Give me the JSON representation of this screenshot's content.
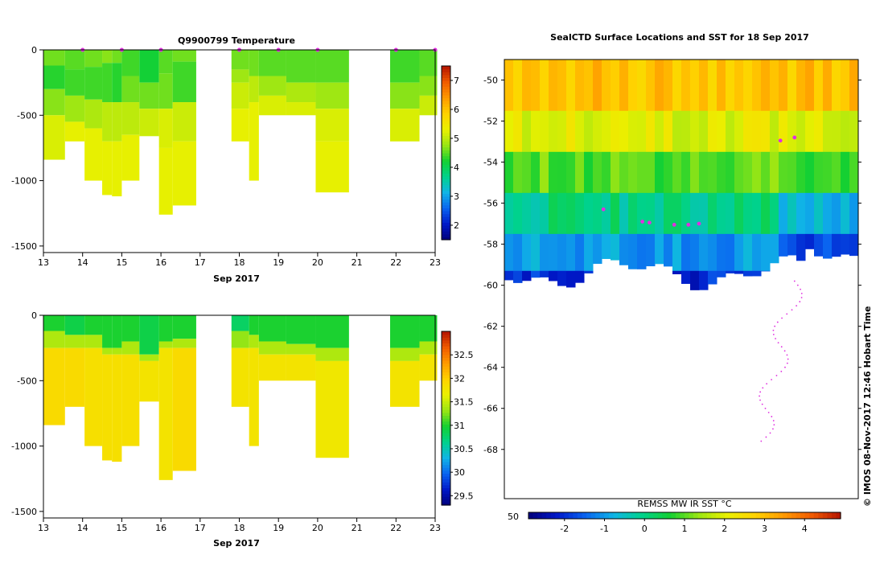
{
  "colors": {
    "cmap_temp": [
      "#00007a",
      "#0018c8",
      "#0a64f0",
      "#10b4e6",
      "#00d28c",
      "#14d032",
      "#9be614",
      "#eaf000",
      "#ffd200",
      "#ff9a00",
      "#f05a00",
      "#b41400"
    ],
    "cmap_sst": [
      "#00007a",
      "#0018c8",
      "#0a64f0",
      "#10b4e6",
      "#00d28c",
      "#14d032",
      "#9be614",
      "#eaf000",
      "#ffd200",
      "#ff9a00",
      "#f05a00",
      "#b41400"
    ],
    "marker": "#e030e0"
  },
  "chart_data": [
    {
      "type": "heatmap",
      "title": "Q9900799  Temperature",
      "xlabel": "Sep 2017",
      "ylabel": "",
      "x_ticks": [
        "13",
        "14",
        "15",
        "16",
        "17",
        "18",
        "19",
        "20",
        "21",
        "22",
        "23"
      ],
      "y_ticks": [
        "0",
        "-500",
        "-1000",
        "-1500"
      ],
      "xlim": [
        13,
        23
      ],
      "ylim": [
        -1550,
        0
      ],
      "colorbar_ticks": [
        "2",
        "3",
        "4",
        "5",
        "6",
        "7"
      ],
      "colorbar_range": [
        1.5,
        7.5
      ],
      "profiles": [
        {
          "x0": 13.0,
          "x1": 13.55,
          "depth": -840,
          "layers": [
            [
              0,
              -120,
              4.6
            ],
            [
              -120,
              -300,
              4.3
            ],
            [
              -300,
              -500,
              4.7
            ],
            [
              -500,
              -840,
              5.2
            ]
          ]
        },
        {
          "x0": 13.55,
          "x1": 14.05,
          "depth": -700,
          "layers": [
            [
              0,
              -150,
              4.5
            ],
            [
              -150,
              -350,
              4.4
            ],
            [
              -350,
              -550,
              4.8
            ],
            [
              -550,
              -700,
              5.3
            ]
          ]
        },
        {
          "x0": 14.05,
          "x1": 14.5,
          "depth": -1000,
          "layers": [
            [
              0,
              -130,
              4.6
            ],
            [
              -130,
              -380,
              4.4
            ],
            [
              -380,
              -600,
              4.9
            ],
            [
              -600,
              -1000,
              5.3
            ]
          ]
        },
        {
          "x0": 14.5,
          "x1": 14.75,
          "depth": -1110,
          "layers": [
            [
              0,
              -100,
              4.7
            ],
            [
              -100,
              -400,
              4.4
            ],
            [
              -400,
              -700,
              5.0
            ],
            [
              -700,
              -1110,
              5.3
            ]
          ]
        },
        {
          "x0": 14.75,
          "x1": 15.0,
          "depth": -1120,
          "layers": [
            [
              0,
              -100,
              4.6
            ],
            [
              -100,
              -400,
              4.3
            ],
            [
              -400,
              -700,
              5.0
            ],
            [
              -700,
              -1120,
              5.3
            ]
          ]
        },
        {
          "x0": 15.0,
          "x1": 15.45,
          "depth": -1000,
          "layers": [
            [
              0,
              -200,
              4.4
            ],
            [
              -200,
              -400,
              4.6
            ],
            [
              -400,
              -650,
              5.0
            ],
            [
              -650,
              -1000,
              5.3
            ]
          ]
        },
        {
          "x0": 15.45,
          "x1": 15.95,
          "depth": -660,
          "layers": [
            [
              0,
              -250,
              4.2
            ],
            [
              -250,
              -450,
              4.6
            ],
            [
              -450,
              -660,
              5.1
            ]
          ]
        },
        {
          "x0": 15.95,
          "x1": 16.3,
          "depth": -1260,
          "layers": [
            [
              0,
              -180,
              4.5
            ],
            [
              -180,
              -450,
              4.6
            ],
            [
              -450,
              -750,
              5.2
            ],
            [
              -750,
              -1260,
              5.3
            ]
          ]
        },
        {
          "x0": 16.3,
          "x1": 16.9,
          "depth": -1190,
          "layers": [
            [
              0,
              -90,
              4.6
            ],
            [
              -90,
              -400,
              4.4
            ],
            [
              -400,
              -700,
              5.1
            ],
            [
              -700,
              -1190,
              5.3
            ]
          ]
        },
        {
          "x0": 17.8,
          "x1": 18.25,
          "depth": -700,
          "layers": [
            [
              0,
              -150,
              4.6
            ],
            [
              -150,
              -250,
              4.8
            ],
            [
              -250,
              -450,
              5.1
            ],
            [
              -450,
              -700,
              5.3
            ]
          ]
        },
        {
          "x0": 18.25,
          "x1": 18.5,
          "depth": -1000,
          "layers": [
            [
              0,
              -200,
              4.6
            ],
            [
              -200,
              -400,
              5.0
            ],
            [
              -400,
              -1000,
              5.3
            ]
          ]
        },
        {
          "x0": 18.5,
          "x1": 19.2,
          "depth": -500,
          "layers": [
            [
              0,
              -200,
              4.5
            ],
            [
              -200,
              -350,
              4.8
            ],
            [
              -350,
              -500,
              5.2
            ]
          ]
        },
        {
          "x0": 19.2,
          "x1": 19.95,
          "depth": -500,
          "layers": [
            [
              0,
              -250,
              4.5
            ],
            [
              -250,
              -400,
              4.9
            ],
            [
              -400,
              -500,
              5.2
            ]
          ]
        },
        {
          "x0": 19.95,
          "x1": 20.8,
          "depth": -1090,
          "layers": [
            [
              0,
              -250,
              4.5
            ],
            [
              -250,
              -450,
              4.8
            ],
            [
              -450,
              -700,
              5.2
            ],
            [
              -700,
              -1090,
              5.3
            ]
          ]
        },
        {
          "x0": 21.85,
          "x1": 22.6,
          "depth": -700,
          "layers": [
            [
              0,
              -250,
              4.4
            ],
            [
              -250,
              -450,
              4.7
            ],
            [
              -450,
              -700,
              5.2
            ]
          ]
        },
        {
          "x0": 22.6,
          "x1": 23.05,
          "depth": -500,
          "layers": [
            [
              0,
              -200,
              4.5
            ],
            [
              -200,
              -350,
              4.7
            ],
            [
              -350,
              -500,
              5.1
            ]
          ]
        }
      ],
      "surface_markers": [
        14.0,
        15.0,
        16.0,
        18.0,
        19.0,
        20.0,
        22.0,
        23.0
      ]
    },
    {
      "type": "heatmap",
      "title": "",
      "xlabel": "Sep 2017",
      "ylabel": "",
      "x_ticks": [
        "13",
        "14",
        "15",
        "16",
        "17",
        "18",
        "19",
        "20",
        "21",
        "22",
        "23"
      ],
      "y_ticks": [
        "0",
        "-500",
        "-1000",
        "-1500"
      ],
      "xlim": [
        13,
        23
      ],
      "ylim": [
        -1550,
        0
      ],
      "colorbar_ticks": [
        "29.5",
        "30",
        "30.5",
        "31",
        "31.5",
        "32",
        "32.5"
      ],
      "colorbar_range": [
        29.3,
        33.0
      ],
      "profiles": [
        {
          "x0": 13.0,
          "x1": 13.55,
          "depth": -840,
          "layers": [
            [
              0,
              -120,
              31.0
            ],
            [
              -120,
              -250,
              31.4
            ],
            [
              -250,
              -840,
              31.9
            ]
          ]
        },
        {
          "x0": 13.55,
          "x1": 14.05,
          "depth": -700,
          "layers": [
            [
              0,
              -150,
              30.9
            ],
            [
              -150,
              -250,
              31.4
            ],
            [
              -250,
              -700,
              31.9
            ]
          ]
        },
        {
          "x0": 14.05,
          "x1": 14.5,
          "depth": -1000,
          "layers": [
            [
              0,
              -150,
              31.0
            ],
            [
              -150,
              -250,
              31.4
            ],
            [
              -250,
              -1000,
              31.85
            ]
          ]
        },
        {
          "x0": 14.5,
          "x1": 14.75,
          "depth": -1110,
          "layers": [
            [
              0,
              -250,
              31.0
            ],
            [
              -250,
              -300,
              31.4
            ],
            [
              -300,
              -1110,
              31.85
            ]
          ]
        },
        {
          "x0": 14.75,
          "x1": 15.0,
          "depth": -1120,
          "layers": [
            [
              0,
              -250,
              31.0
            ],
            [
              -250,
              -300,
              31.4
            ],
            [
              -300,
              -1120,
              31.85
            ]
          ]
        },
        {
          "x0": 15.0,
          "x1": 15.45,
          "depth": -1000,
          "layers": [
            [
              0,
              -200,
              31.0
            ],
            [
              -200,
              -300,
              31.4
            ],
            [
              -300,
              -1000,
              31.85
            ]
          ]
        },
        {
          "x0": 15.45,
          "x1": 15.95,
          "depth": -660,
          "layers": [
            [
              0,
              -300,
              30.9
            ],
            [
              -300,
              -350,
              31.4
            ],
            [
              -350,
              -660,
              31.8
            ]
          ]
        },
        {
          "x0": 15.95,
          "x1": 16.3,
          "depth": -1260,
          "layers": [
            [
              0,
              -200,
              31.0
            ],
            [
              -200,
              -250,
              31.4
            ],
            [
              -250,
              -1260,
              31.8
            ]
          ]
        },
        {
          "x0": 16.3,
          "x1": 16.9,
          "depth": -1190,
          "layers": [
            [
              0,
              -180,
              31.0
            ],
            [
              -180,
              -250,
              31.4
            ],
            [
              -250,
              -1190,
              31.9
            ]
          ]
        },
        {
          "x0": 17.8,
          "x1": 18.25,
          "depth": -700,
          "layers": [
            [
              0,
              -120,
              30.8
            ],
            [
              -120,
              -250,
              31.3
            ],
            [
              -250,
              -700,
              31.8
            ]
          ]
        },
        {
          "x0": 18.25,
          "x1": 18.5,
          "depth": -1000,
          "layers": [
            [
              0,
              -150,
              31.0
            ],
            [
              -150,
              -250,
              31.4
            ],
            [
              -250,
              -1000,
              31.8
            ]
          ]
        },
        {
          "x0": 18.5,
          "x1": 19.2,
          "depth": -500,
          "layers": [
            [
              0,
              -200,
              31.0
            ],
            [
              -200,
              -300,
              31.4
            ],
            [
              -300,
              -500,
              31.8
            ]
          ]
        },
        {
          "x0": 19.2,
          "x1": 19.95,
          "depth": -500,
          "layers": [
            [
              0,
              -220,
              31.0
            ],
            [
              -220,
              -300,
              31.4
            ],
            [
              -300,
              -500,
              31.8
            ]
          ]
        },
        {
          "x0": 19.95,
          "x1": 20.8,
          "depth": -1090,
          "layers": [
            [
              0,
              -250,
              31.0
            ],
            [
              -250,
              -350,
              31.4
            ],
            [
              -350,
              -1090,
              31.75
            ]
          ]
        },
        {
          "x0": 21.85,
          "x1": 22.6,
          "depth": -700,
          "layers": [
            [
              0,
              -250,
              31.0
            ],
            [
              -250,
              -350,
              31.4
            ],
            [
              -350,
              -700,
              31.8
            ]
          ]
        },
        {
          "x0": 22.6,
          "x1": 23.05,
          "depth": -500,
          "layers": [
            [
              0,
              -200,
              31.0
            ],
            [
              -200,
              -300,
              31.4
            ],
            [
              -300,
              -500,
              31.8
            ]
          ]
        }
      ]
    },
    {
      "type": "heatmap",
      "title": "SealCTD Surface Locations and SST for 18 Sep 2017",
      "xlabel": "",
      "ylabel": "",
      "y_ticks": [
        "-50",
        "-52",
        "-54",
        "-56",
        "-58",
        "-60",
        "-62",
        "-64",
        "-66",
        "-68"
      ],
      "ylim": [
        -70.4,
        -49.0
      ],
      "colorbar_label": "REMSS MW IR SST °C",
      "colorbar_ticks": [
        "-2",
        "-1",
        "0",
        "1",
        "2",
        "3",
        "4"
      ],
      "colorbar_range": [
        -2.9,
        4.9
      ],
      "colorbar_left_label": "50",
      "sst_bands": [
        {
          "lat_top": -49.0,
          "lat_bot": -51.5,
          "sst": 3.0
        },
        {
          "lat_top": -51.5,
          "lat_bot": -53.5,
          "sst": 2.0
        },
        {
          "lat_top": -53.5,
          "lat_bot": -55.5,
          "sst": 1.0
        },
        {
          "lat_top": -55.5,
          "lat_bot": -57.5,
          "sst": 0.0
        },
        {
          "lat_top": -57.5,
          "lat_bot": -59.3,
          "sst": -1.0
        },
        {
          "lat_top": -59.3,
          "lat_bot": -60.5,
          "sst": -2.0
        }
      ],
      "surface_locations": [
        {
          "lon": 0.28,
          "lat": -56.3
        },
        {
          "lon": 0.39,
          "lat": -56.9
        },
        {
          "lon": 0.41,
          "lat": -56.95
        },
        {
          "lon": 0.48,
          "lat": -57.05
        },
        {
          "lon": 0.52,
          "lat": -57.05
        },
        {
          "lon": 0.55,
          "lat": -57.0
        },
        {
          "lon": 0.78,
          "lat": -52.95
        },
        {
          "lon": 0.82,
          "lat": -52.8
        }
      ]
    }
  ],
  "side_label": "© IMOS 08-Nov-2017 12:46 Hobart Time"
}
